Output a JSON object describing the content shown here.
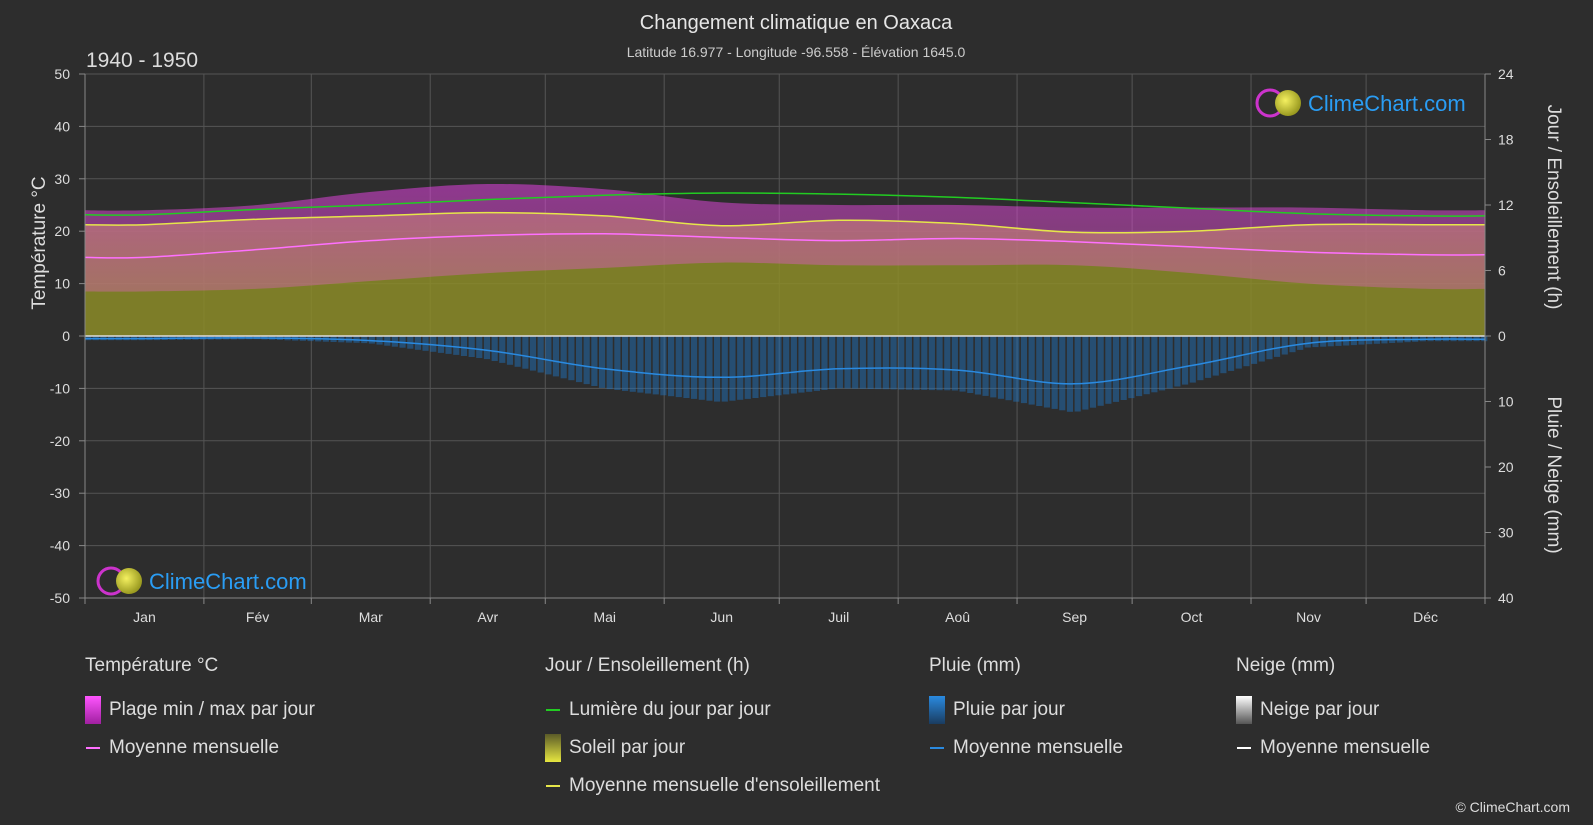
{
  "header": {
    "title": "Changement climatique en Oaxaca",
    "subtitle": "Latitude 16.977 - Longitude -96.558 - Élévation 1645.0",
    "period": "1940 - 1950"
  },
  "watermark": {
    "text": "ClimeChart.com"
  },
  "copyright": "© ClimeChart.com",
  "colors": {
    "background": "#2d2d2d",
    "grid": "#555555",
    "temp_band": "#e040e0",
    "temp_mean": "#ff70ff",
    "daylight": "#22cc22",
    "sunshine_fill": "#8c8c28",
    "sunshine_mean": "#e6e64a",
    "rain": "#1e78c8",
    "rain_mean": "#2a8ae0",
    "snow_mean": "#ffffff",
    "brand": "#2a9df4"
  },
  "chart_data": {
    "type": "area",
    "months": [
      "Jan",
      "Fév",
      "Mar",
      "Avr",
      "Mai",
      "Jun",
      "Juil",
      "Aoû",
      "Sep",
      "Oct",
      "Nov",
      "Déc"
    ],
    "left_axis": {
      "label": "Température °C",
      "range": [
        -50,
        50
      ],
      "ticks": [
        "50",
        "40",
        "30",
        "20",
        "10",
        "0",
        "-10",
        "-20",
        "-30",
        "-40",
        "-50"
      ]
    },
    "right_axis_top": {
      "label": "Jour / Ensoleillement (h)",
      "range": [
        0,
        24
      ],
      "ticks": [
        "24",
        "18",
        "12",
        "6",
        "0"
      ]
    },
    "right_axis_bottom": {
      "label": "Pluie / Neige (mm)",
      "range": [
        0,
        40
      ],
      "ticks": [
        "10",
        "20",
        "30",
        "40"
      ]
    },
    "series": [
      {
        "name": "Plage min / max par jour",
        "kind": "band",
        "axis": "temperature",
        "min": [
          8.5,
          9,
          10.5,
          12,
          13,
          14,
          13.5,
          13.5,
          13.5,
          12,
          10,
          9
        ],
        "max": [
          24,
          25,
          27.5,
          29,
          28,
          25.5,
          25,
          25,
          24.5,
          24.5,
          24.5,
          24
        ]
      },
      {
        "name": "Moyenne mensuelle",
        "kind": "line",
        "axis": "temperature",
        "values": [
          15,
          16.5,
          18.2,
          19.2,
          19.5,
          18.8,
          18.2,
          18.6,
          18,
          17,
          16,
          15.5
        ]
      },
      {
        "name": "Lumière du jour par jour",
        "kind": "line",
        "axis": "hours",
        "values": [
          11.1,
          11.6,
          12.0,
          12.5,
          12.9,
          13.1,
          13.0,
          12.7,
          12.2,
          11.7,
          11.2,
          11.0
        ]
      },
      {
        "name": "Soleil par jour",
        "kind": "area",
        "axis": "hours",
        "values": [
          10.2,
          10.7,
          11.0,
          11.3,
          11.0,
          10.1,
          10.6,
          10.3,
          9.5,
          9.6,
          10.2,
          10.2
        ]
      },
      {
        "name": "Moyenne mensuelle d'ensoleillement",
        "kind": "line",
        "axis": "hours",
        "values": [
          10.2,
          10.7,
          11.0,
          11.3,
          11.0,
          10.1,
          10.6,
          10.3,
          9.5,
          9.6,
          10.2,
          10.2
        ]
      },
      {
        "name": "Pluie par jour",
        "kind": "bars",
        "axis": "precip",
        "values": [
          0.4,
          0.3,
          0.7,
          2.2,
          5.0,
          6.3,
          5.0,
          5.2,
          7.3,
          4.5,
          1.1,
          0.5
        ]
      },
      {
        "name": "Moyenne mensuelle",
        "kind": "line",
        "axis": "precip",
        "values": [
          0.4,
          0.3,
          0.7,
          2.2,
          5.0,
          6.3,
          5.0,
          5.2,
          7.3,
          4.5,
          1.1,
          0.5
        ]
      },
      {
        "name": "Neige par jour",
        "kind": "bars",
        "axis": "precip",
        "values": [
          0,
          0,
          0,
          0,
          0,
          0,
          0,
          0,
          0,
          0,
          0,
          0
        ]
      },
      {
        "name": "Moyenne mensuelle",
        "kind": "line",
        "axis": "precip",
        "values": [
          0,
          0,
          0,
          0,
          0,
          0,
          0,
          0,
          0,
          0,
          0,
          0
        ]
      }
    ]
  },
  "legend": {
    "temperature": {
      "heading": "Température °C",
      "band_label": "Plage min / max par jour",
      "mean_label": "Moyenne mensuelle"
    },
    "sun": {
      "heading": "Jour / Ensoleillement (h)",
      "daylight_label": "Lumière du jour par jour",
      "sunshine_label": "Soleil par jour",
      "sunshine_mean_label": "Moyenne mensuelle d'ensoleillement"
    },
    "rain": {
      "heading": "Pluie (mm)",
      "daily_label": "Pluie par jour",
      "mean_label": "Moyenne mensuelle"
    },
    "snow": {
      "heading": "Neige (mm)",
      "daily_label": "Neige par jour",
      "mean_label": "Moyenne mensuelle"
    }
  }
}
